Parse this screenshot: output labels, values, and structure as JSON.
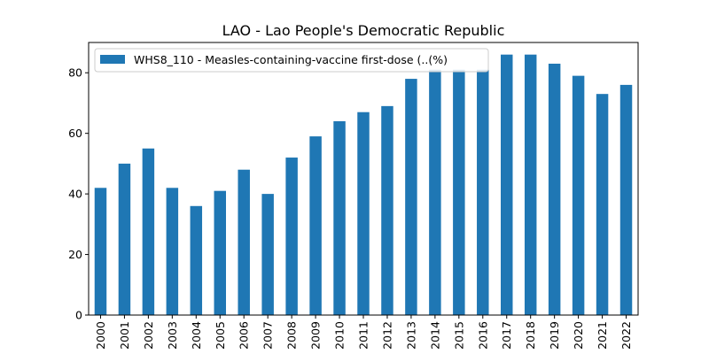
{
  "chart_data": {
    "type": "bar",
    "title": "LAO - Lao People's Democratic Republic",
    "xlabel": "",
    "ylabel": "",
    "categories": [
      "2000",
      "2001",
      "2002",
      "2003",
      "2004",
      "2005",
      "2006",
      "2007",
      "2008",
      "2009",
      "2010",
      "2011",
      "2012",
      "2013",
      "2014",
      "2015",
      "2016",
      "2017",
      "2018",
      "2019",
      "2020",
      "2021",
      "2022"
    ],
    "series": [
      {
        "name": "WHS8_110 - Measles-containing-vaccine first-dose (..(%)",
        "values": [
          42,
          50,
          55,
          42,
          36,
          41,
          48,
          40,
          52,
          59,
          64,
          67,
          69,
          78,
          81,
          81,
          81,
          86,
          86,
          83,
          79,
          73,
          76
        ]
      }
    ],
    "ylim": [
      0,
      90
    ],
    "yticks": [
      0,
      20,
      40,
      60,
      80
    ],
    "bar_color": "#1f77b4",
    "legend_position": "upper-left",
    "grid": false
  }
}
